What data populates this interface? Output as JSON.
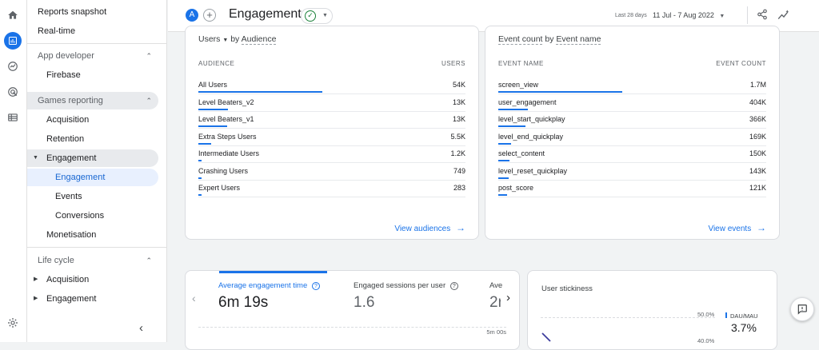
{
  "nav": {
    "reports_snapshot": "Reports snapshot",
    "realtime": "Real-time",
    "app_developer": "App developer",
    "firebase": "Firebase",
    "games_reporting": "Games reporting",
    "acquisition": "Acquisition",
    "retention": "Retention",
    "engagement": "Engagement",
    "engagement_sub": "Engagement",
    "events": "Events",
    "conversions": "Conversions",
    "monetisation": "Monetisation",
    "life_cycle": "Life cycle",
    "lc_acquisition": "Acquisition",
    "lc_engagement": "Engagement"
  },
  "header": {
    "avatar": "A",
    "title": "Engagement",
    "date_caption": "Last 28 days",
    "date_range": "11 Jul - 7 Aug 2022"
  },
  "audience_card": {
    "metric": "Users",
    "by": "by",
    "dimension": "Audience",
    "col_left": "AUDIENCE",
    "col_right": "USERS",
    "rows": [
      {
        "label": "All Users",
        "value": "54K",
        "fraction": 1.0
      },
      {
        "label": "Level Beaters_v2",
        "value": "13K",
        "fraction": 0.24
      },
      {
        "label": "Level Beaters_v1",
        "value": "13K",
        "fraction": 0.23
      },
      {
        "label": "Extra Steps Users",
        "value": "5.5K",
        "fraction": 0.1
      },
      {
        "label": "Intermediate Users",
        "value": "1.2K",
        "fraction": 0.02
      },
      {
        "label": "Crashing Users",
        "value": "749",
        "fraction": 0.014
      },
      {
        "label": "Expert Users",
        "value": "283",
        "fraction": 0.005
      }
    ],
    "link": "View audiences"
  },
  "events_card": {
    "metric": "Event count",
    "by": "by",
    "dimension": "Event name",
    "col_left": "EVENT NAME",
    "col_right": "EVENT COUNT",
    "rows": [
      {
        "label": "screen_view",
        "value": "1.7M",
        "fraction": 1.0
      },
      {
        "label": "user_engagement",
        "value": "404K",
        "fraction": 0.24
      },
      {
        "label": "level_start_quickplay",
        "value": "366K",
        "fraction": 0.22
      },
      {
        "label": "level_end_quickplay",
        "value": "169K",
        "fraction": 0.1
      },
      {
        "label": "select_content",
        "value": "150K",
        "fraction": 0.09
      },
      {
        "label": "level_reset_quickplay",
        "value": "143K",
        "fraction": 0.085
      },
      {
        "label": "post_score",
        "value": "121K",
        "fraction": 0.07
      }
    ],
    "link": "View events"
  },
  "metrics_card": {
    "m1_label": "Average engagement time",
    "m1_value": "6m 19s",
    "m2_label": "Engaged sessions per user",
    "m2_value": "1.6",
    "m3_label": "Ave",
    "m3_value": "2r",
    "axis_label": "5m 00s"
  },
  "stickiness_card": {
    "title": "User stickiness",
    "tick_top": "50.0%",
    "tick_bottom": "40.0%",
    "legend": "DAU/MAU",
    "value": "3.7%"
  }
}
